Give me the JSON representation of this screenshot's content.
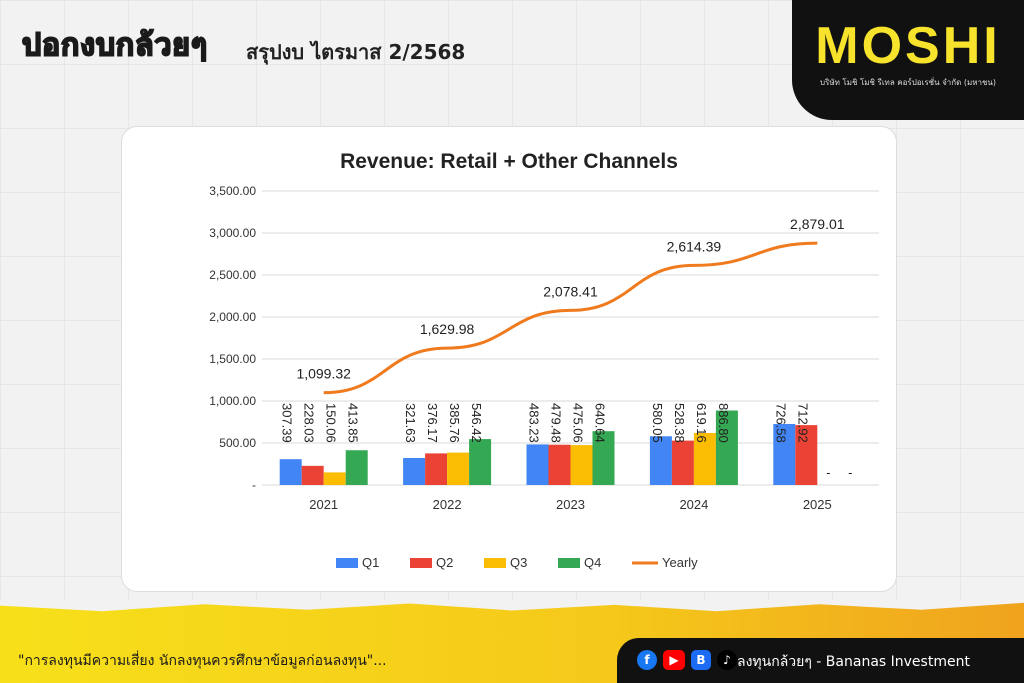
{
  "header": {
    "logo_text": "ปอกงบกล้วยๆ",
    "title": "สรุปงบ ไตรมาส 2/2568"
  },
  "brand": {
    "name": "MOSHI",
    "company": "บริษัท โมชิ โมชิ รีเทล คอร์ปอเรชั่น จำกัด (มหาชน)",
    "accent": "#f7e32b"
  },
  "chart_data": {
    "type": "bar",
    "title": "Revenue: Retail + Other Channels",
    "categories": [
      "2021",
      "2022",
      "2023",
      "2024",
      "2025"
    ],
    "series": [
      {
        "name": "Q1",
        "color": "#4285f4",
        "values": [
          307.39,
          321.63,
          483.23,
          580.05,
          726.58
        ],
        "labels": [
          "307.39",
          "321.63",
          "483.23",
          "580.05",
          "726.58"
        ]
      },
      {
        "name": "Q2",
        "color": "#ea4335",
        "values": [
          228.03,
          376.17,
          479.48,
          528.38,
          712.92
        ],
        "labels": [
          "228.03",
          "376.17",
          "479.48",
          "528.38",
          "712.92"
        ]
      },
      {
        "name": "Q3",
        "color": "#fbbc04",
        "values": [
          150.06,
          385.76,
          475.06,
          619.16,
          0
        ],
        "labels": [
          "150.06",
          "385.76",
          "475.06",
          "619.16",
          "-"
        ]
      },
      {
        "name": "Q4",
        "color": "#34a853",
        "values": [
          413.85,
          546.42,
          640.64,
          886.8,
          0
        ],
        "labels": [
          "413.85",
          "546.42",
          "640.64",
          "886.80",
          "-"
        ]
      }
    ],
    "line_series": {
      "name": "Yearly",
      "color": "#f07a1e",
      "values": [
        1099.32,
        1629.98,
        2078.41,
        2614.39,
        2879.01
      ],
      "labels": [
        "1,099.32",
        "1,629.98",
        "2,078.41",
        "2,614.39",
        "2,879.01"
      ]
    },
    "yticks": [
      "-",
      "500.00",
      "1,000.00",
      "1,500.00",
      "2,000.00",
      "2,500.00",
      "3,000.00",
      "3,500.00"
    ],
    "ylim": [
      0,
      3500
    ],
    "grid": true,
    "legend": "bottom"
  },
  "footer": {
    "disclaimer": "\"การลงทุนมีความเสี่ยง นักลงทุนควรศึกษาข้อมูลก่อนลงทุน\"...",
    "social_text": "ลงทุนกล้วยๆ - Bananas Investment",
    "icons": [
      "facebook-icon",
      "youtube-icon",
      "blockdit-icon",
      "tiktok-icon"
    ]
  }
}
